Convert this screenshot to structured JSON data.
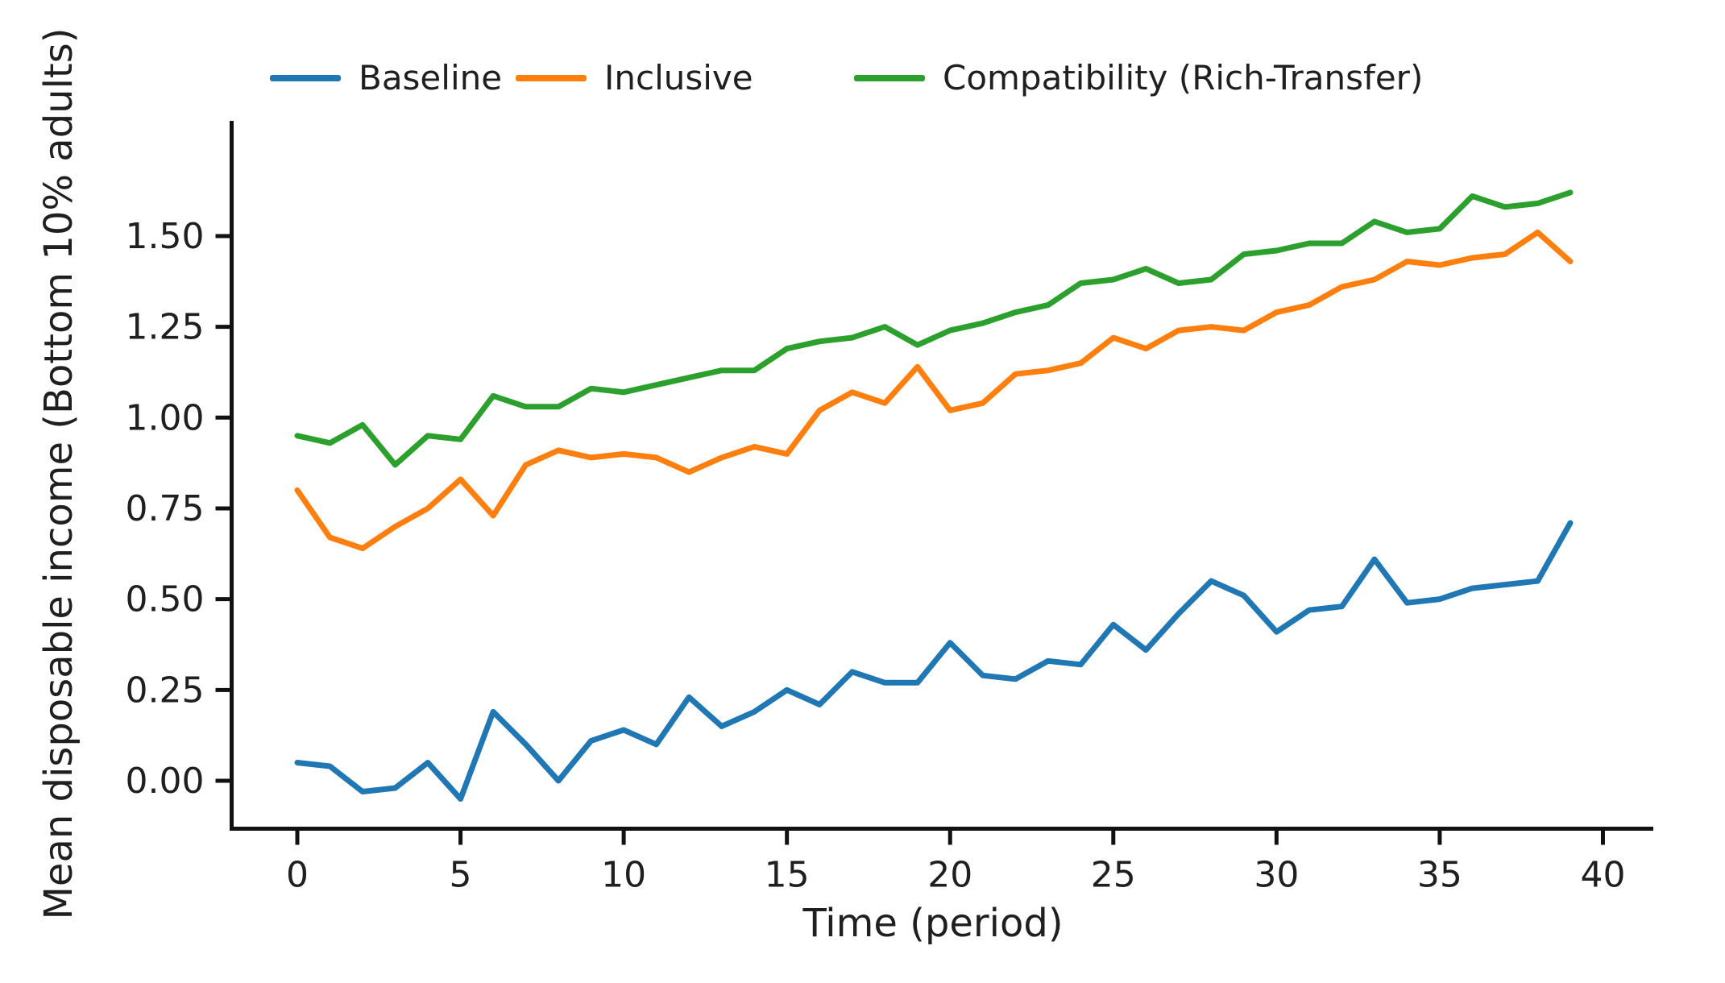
{
  "chart_data": {
    "type": "line",
    "title": "",
    "xlabel": "Time (period)",
    "ylabel": "Mean disposable income (Bottom 10% adults)",
    "x": [
      0,
      1,
      2,
      3,
      4,
      5,
      6,
      7,
      8,
      9,
      10,
      11,
      12,
      13,
      14,
      15,
      16,
      17,
      18,
      19,
      20,
      21,
      22,
      23,
      24,
      25,
      26,
      27,
      28,
      29,
      30,
      31,
      32,
      33,
      34,
      35,
      36,
      37,
      38,
      39
    ],
    "xlim": [
      -2,
      41.5
    ],
    "ylim": [
      -0.18,
      1.75
    ],
    "grid": false,
    "legend_position": "top",
    "x_ticks": {
      "positions": [
        0,
        5,
        10,
        15,
        20,
        25,
        30,
        35,
        40
      ],
      "labels": [
        "0",
        "5",
        "10",
        "15",
        "20",
        "25",
        "30",
        "35",
        "40"
      ]
    },
    "y_ticks": {
      "positions": [
        0.0,
        0.25,
        0.5,
        0.75,
        1.0,
        1.25,
        1.5
      ],
      "labels": [
        "0.00",
        "0.25",
        "0.50",
        "0.75",
        "1.00",
        "1.25",
        "1.50"
      ]
    },
    "series": [
      {
        "name": "Baseline",
        "color": "#1f77b4",
        "values": [
          0.05,
          0.04,
          -0.03,
          -0.02,
          0.05,
          -0.05,
          0.19,
          0.1,
          0.0,
          0.11,
          0.14,
          0.1,
          0.23,
          0.15,
          0.19,
          0.25,
          0.21,
          0.3,
          0.27,
          0.27,
          0.38,
          0.29,
          0.28,
          0.33,
          0.32,
          0.43,
          0.36,
          0.46,
          0.55,
          0.51,
          0.41,
          0.47,
          0.48,
          0.61,
          0.49,
          0.5,
          0.53,
          0.54,
          0.55,
          0.71
        ]
      },
      {
        "name": "Inclusive",
        "color": "#ff7f0e",
        "values": [
          0.8,
          0.67,
          0.64,
          0.7,
          0.75,
          0.83,
          0.73,
          0.87,
          0.91,
          0.89,
          0.9,
          0.89,
          0.85,
          0.89,
          0.92,
          0.9,
          1.02,
          1.07,
          1.04,
          1.14,
          1.02,
          1.04,
          1.12,
          1.13,
          1.15,
          1.22,
          1.19,
          1.24,
          1.25,
          1.24,
          1.29,
          1.31,
          1.36,
          1.38,
          1.43,
          1.42,
          1.44,
          1.45,
          1.51,
          1.43
        ]
      },
      {
        "name": "Compatibility (Rich-Transfer)",
        "color": "#2ca02c",
        "values": [
          0.95,
          0.93,
          0.98,
          0.87,
          0.95,
          0.94,
          1.06,
          1.03,
          1.03,
          1.08,
          1.07,
          1.09,
          1.11,
          1.13,
          1.13,
          1.19,
          1.21,
          1.22,
          1.25,
          1.2,
          1.24,
          1.26,
          1.29,
          1.31,
          1.37,
          1.38,
          1.41,
          1.37,
          1.38,
          1.45,
          1.46,
          1.48,
          1.48,
          1.54,
          1.51,
          1.52,
          1.61,
          1.58,
          1.59,
          1.62
        ]
      }
    ],
    "axis_color": "#111111",
    "text_color": "#1f1f1f"
  }
}
